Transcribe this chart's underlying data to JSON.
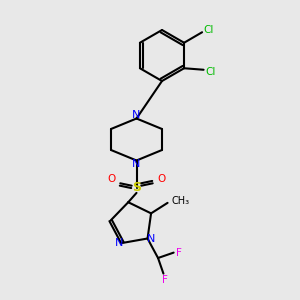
{
  "bg_color": "#e8e8e8",
  "bond_color": "#000000",
  "n_color": "#0000ff",
  "o_color": "#ff0000",
  "s_color": "#cccc00",
  "cl_color": "#00bb00",
  "f_color": "#ee00ee",
  "line_width": 1.5,
  "fig_width": 3.0,
  "fig_height": 3.0,
  "xlim": [
    0,
    10
  ],
  "ylim": [
    0,
    10
  ]
}
